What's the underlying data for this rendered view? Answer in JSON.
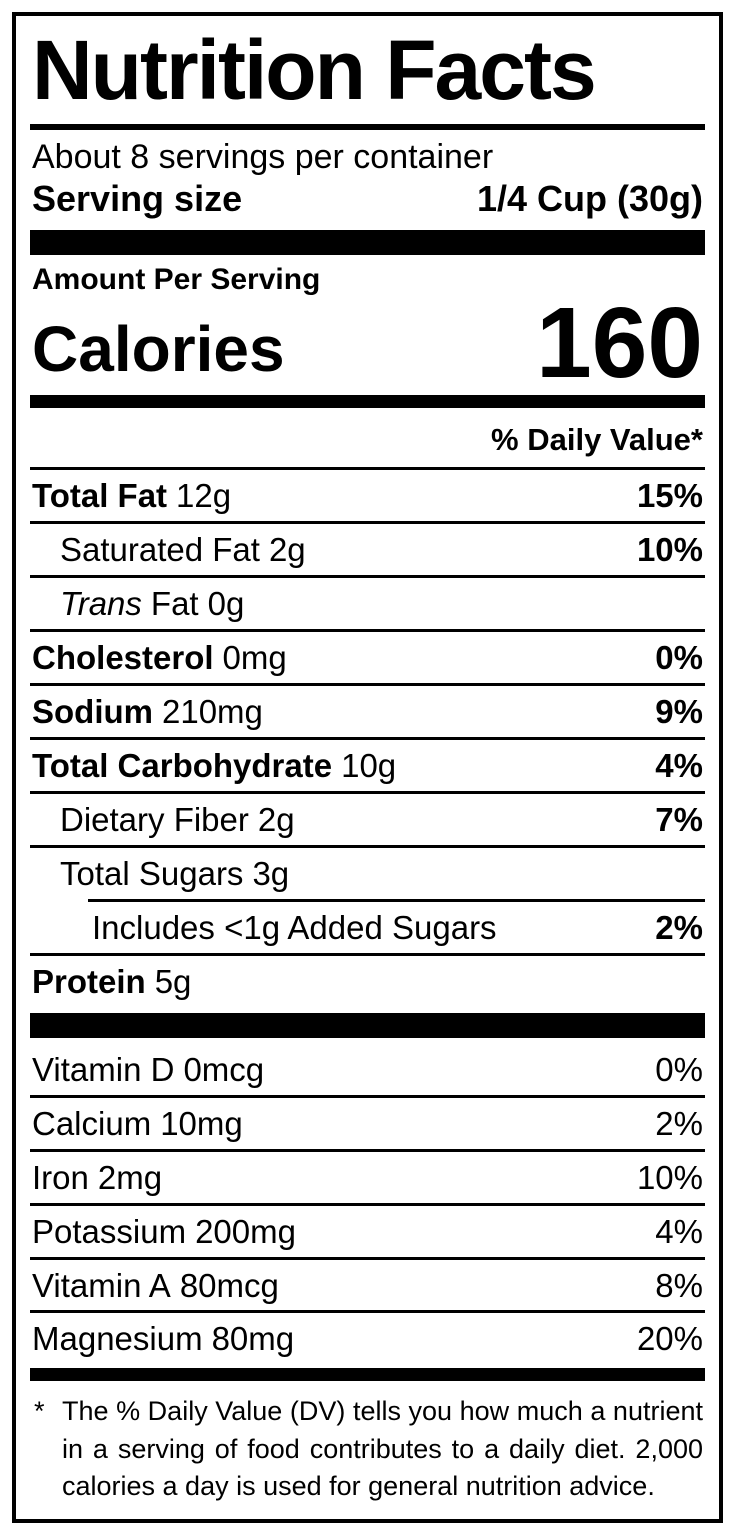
{
  "colors": {
    "ink": "#000000",
    "paper": "#ffffff"
  },
  "label": {
    "title": "Nutrition Facts",
    "servings_per_container": "About 8 servings per container",
    "serving_size_label": "Serving size",
    "serving_size_value": "1/4 Cup (30g)",
    "amount_per_serving": "Amount Per Serving",
    "calories_label": "Calories",
    "calories_value": "160",
    "daily_value_header": "% Daily Value*",
    "nutrients": [
      {
        "name": "Total Fat",
        "amount": "12g",
        "dv": "15%"
      },
      {
        "name": "Saturated Fat",
        "amount": "2g",
        "dv": "10%"
      },
      {
        "name_italic": "Trans",
        "name_rest": "Fat",
        "amount": "0g",
        "dv": ""
      },
      {
        "name": "Cholesterol",
        "amount": "0mg",
        "dv": "0%"
      },
      {
        "name": "Sodium",
        "amount": "210mg",
        "dv": "9%"
      },
      {
        "name": "Total Carbohydrate",
        "amount": "10g",
        "dv": "4%"
      },
      {
        "name": "Dietary Fiber",
        "amount": "2g",
        "dv": "7%"
      },
      {
        "name": "Total Sugars",
        "amount": "3g",
        "dv": ""
      },
      {
        "name": "Includes <1g Added Sugars",
        "amount": "",
        "dv": "2%"
      },
      {
        "name": "Protein",
        "amount": "5g",
        "dv": ""
      }
    ],
    "vitamins": [
      {
        "name": "Vitamin D",
        "amount": "0mcg",
        "dv": "0%"
      },
      {
        "name": "Calcium",
        "amount": "10mg",
        "dv": "2%"
      },
      {
        "name": "Iron",
        "amount": "2mg",
        "dv": "10%"
      },
      {
        "name": "Potassium",
        "amount": "200mg",
        "dv": "4%"
      },
      {
        "name": "Vitamin A",
        "amount": "80mcg",
        "dv": "8%"
      },
      {
        "name": "Magnesium",
        "amount": "80mg",
        "dv": "20%"
      }
    ],
    "footnote_marker": "*",
    "footnote_text": "The % Daily Value (DV) tells you how much a nutrient in a serving of food contributes to a daily diet. 2,000 calories a day is used for general nutrition advice."
  }
}
